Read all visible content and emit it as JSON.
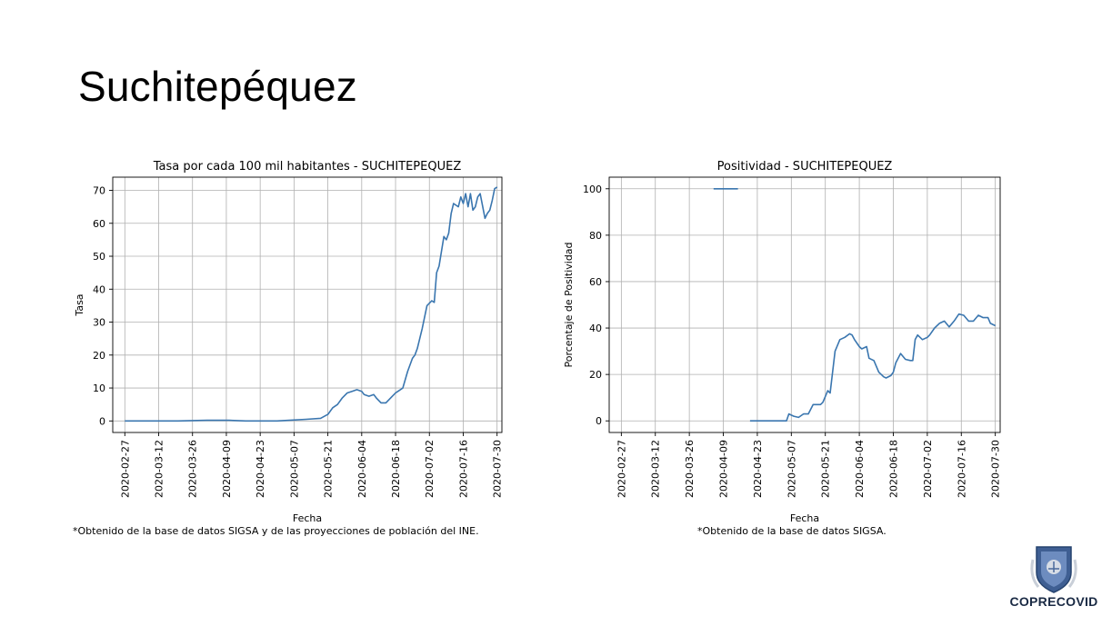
{
  "slide": {
    "title": "Suchitepéquez"
  },
  "chart_data": [
    {
      "type": "line",
      "title": "Tasa por cada 100 mil habitantes - SUCHITEPEQUEZ",
      "xlabel": "Fecha",
      "ylabel": "Tasa",
      "x_range": [
        "2020-02-22",
        "2020-08-01"
      ],
      "ylim": [
        -3.5,
        74
      ],
      "yticks": [
        0,
        10,
        20,
        30,
        40,
        50,
        60,
        70
      ],
      "xticks": [
        "2020-02-27",
        "2020-03-12",
        "2020-03-26",
        "2020-04-09",
        "2020-04-23",
        "2020-05-07",
        "2020-05-21",
        "2020-06-04",
        "2020-06-18",
        "2020-07-02",
        "2020-07-16",
        "2020-07-30"
      ],
      "grid": true,
      "color": "#3a76af",
      "caption": "*Obtenido de la base de datos SIGSA y de las proyecciones de población del INE.",
      "series": [
        {
          "x": [
            "2020-02-27",
            "2020-03-20",
            "2020-04-01",
            "2020-04-10",
            "2020-04-17",
            "2020-04-30",
            "2020-05-05",
            "2020-05-12",
            "2020-05-18",
            "2020-05-21",
            "2020-05-23",
            "2020-05-25",
            "2020-05-27",
            "2020-05-29",
            "2020-05-31",
            "2020-06-02",
            "2020-06-04",
            "2020-06-05",
            "2020-06-07",
            "2020-06-09",
            "2020-06-10",
            "2020-06-12",
            "2020-06-14",
            "2020-06-16",
            "2020-06-18",
            "2020-06-19",
            "2020-06-21",
            "2020-06-23",
            "2020-06-25",
            "2020-06-26",
            "2020-06-27",
            "2020-06-29",
            "2020-07-01",
            "2020-07-03",
            "2020-07-04",
            "2020-07-05",
            "2020-07-06",
            "2020-07-08",
            "2020-07-09",
            "2020-07-10",
            "2020-07-11",
            "2020-07-12",
            "2020-07-14",
            "2020-07-15",
            "2020-07-16",
            "2020-07-17",
            "2020-07-18",
            "2020-07-19",
            "2020-07-20",
            "2020-07-21",
            "2020-07-22",
            "2020-07-23",
            "2020-07-25",
            "2020-07-26",
            "2020-07-27",
            "2020-07-28",
            "2020-07-29",
            "2020-07-30"
          ],
          "y": [
            0,
            0,
            0.2,
            0.2,
            0,
            0,
            0.2,
            0.5,
            0.8,
            2,
            4,
            5,
            7,
            8.5,
            9,
            9.5,
            9,
            8,
            7.5,
            8,
            7,
            5.5,
            5.5,
            7,
            8.5,
            9,
            10,
            15,
            19,
            20,
            22,
            28,
            35,
            36.5,
            36,
            45,
            47,
            56,
            55,
            57,
            63,
            66,
            65,
            68,
            66,
            69,
            65,
            69,
            64,
            65,
            68,
            69,
            61.5,
            63,
            64,
            67,
            70.5,
            71
          ]
        }
      ]
    },
    {
      "type": "line",
      "title": "Positividad - SUCHITEPEQUEZ",
      "xlabel": "Fecha",
      "ylabel": "Porcentaje de Positividad",
      "x_range": [
        "2020-02-22",
        "2020-08-01"
      ],
      "ylim": [
        -5,
        105
      ],
      "yticks": [
        0,
        20,
        40,
        60,
        80,
        100
      ],
      "xticks": [
        "2020-02-27",
        "2020-03-12",
        "2020-03-26",
        "2020-04-09",
        "2020-04-23",
        "2020-05-07",
        "2020-05-21",
        "2020-06-04",
        "2020-06-18",
        "2020-07-02",
        "2020-07-16",
        "2020-07-30"
      ],
      "grid": true,
      "color": "#3a76af",
      "caption": "*Obtenido de la base de datos SIGSA.",
      "series": [
        {
          "segments": [
            {
              "x": [
                "2020-04-05",
                "2020-04-15"
              ],
              "y": [
                100,
                100
              ]
            },
            {
              "x": [
                "2020-04-20",
                "2020-05-01",
                "2020-05-05",
                "2020-05-06",
                "2020-05-08",
                "2020-05-10",
                "2020-05-12",
                "2020-05-14",
                "2020-05-16",
                "2020-05-18",
                "2020-05-19",
                "2020-05-20",
                "2020-05-22",
                "2020-05-23",
                "2020-05-25",
                "2020-05-27",
                "2020-05-29",
                "2020-05-31",
                "2020-06-01",
                "2020-06-02",
                "2020-06-04",
                "2020-06-05",
                "2020-06-07",
                "2020-06-08",
                "2020-06-10",
                "2020-06-12",
                "2020-06-14",
                "2020-06-15",
                "2020-06-17",
                "2020-06-18",
                "2020-06-19",
                "2020-06-21",
                "2020-06-23",
                "2020-06-25",
                "2020-06-26",
                "2020-06-27",
                "2020-06-28",
                "2020-06-30",
                "2020-07-02",
                "2020-07-03",
                "2020-07-05",
                "2020-07-07",
                "2020-07-09",
                "2020-07-11",
                "2020-07-13",
                "2020-07-15",
                "2020-07-17",
                "2020-07-19",
                "2020-07-21",
                "2020-07-23",
                "2020-07-25",
                "2020-07-27",
                "2020-07-28",
                "2020-07-30"
              ],
              "y": [
                0,
                0,
                0,
                3,
                2,
                1.5,
                3,
                3,
                7,
                7,
                7,
                8,
                13,
                12,
                30,
                35,
                36,
                37.5,
                37,
                35,
                32,
                31,
                32,
                27,
                26,
                21,
                19,
                18.5,
                19.5,
                21,
                25,
                29,
                26.5,
                26,
                26,
                35,
                37,
                35,
                36,
                37,
                40,
                42,
                43,
                40.5,
                43,
                46,
                45.5,
                43,
                43,
                45.5,
                44.5,
                44.5,
                42,
                41
              ]
            }
          ]
        }
      ]
    }
  ],
  "branding": {
    "logo_text": "COPRECOVID"
  }
}
